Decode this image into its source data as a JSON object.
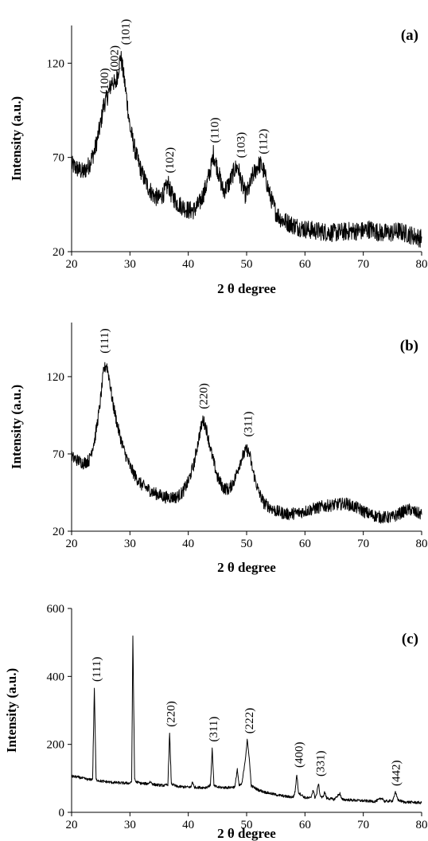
{
  "chart_data": [
    {
      "id": "a",
      "type": "line",
      "panel_label": "(a)",
      "xlabel": "2 θ degree",
      "ylabel": "Intensity (a.u.)",
      "xlim": [
        20,
        80
      ],
      "ylim": [
        20,
        140
      ],
      "xticks": [
        20,
        30,
        40,
        50,
        60,
        70,
        80
      ],
      "yticks": [
        20,
        70,
        120
      ],
      "grid": false,
      "series": [
        {
          "noise": 5,
          "points": [
            [
              20,
              66
            ],
            [
              21,
              64
            ],
            [
              22,
              62
            ],
            [
              23,
              66
            ],
            [
              24,
              74
            ],
            [
              25,
              88
            ],
            [
              25.5,
              98
            ],
            [
              26,
              101
            ],
            [
              26.5,
              106
            ],
            [
              27,
              111
            ],
            [
              27.5,
              108
            ],
            [
              28,
              116
            ],
            [
              28.4,
              124
            ],
            [
              29,
              112
            ],
            [
              29.5,
              100
            ],
            [
              30,
              86
            ],
            [
              31,
              72
            ],
            [
              32,
              62
            ],
            [
              33,
              55
            ],
            [
              34,
              50
            ],
            [
              35,
              48
            ],
            [
              36,
              52
            ],
            [
              36.6,
              56
            ],
            [
              37,
              51
            ],
            [
              38,
              46
            ],
            [
              39,
              44
            ],
            [
              40,
              42
            ],
            [
              41,
              42
            ],
            [
              42,
              46
            ],
            [
              43,
              54
            ],
            [
              44,
              66
            ],
            [
              44.3,
              72
            ],
            [
              45,
              64
            ],
            [
              46,
              52
            ],
            [
              47,
              56
            ],
            [
              48,
              64
            ],
            [
              48.5,
              65
            ],
            [
              49,
              58
            ],
            [
              49.8,
              50
            ],
            [
              50.5,
              54
            ],
            [
              51,
              60
            ],
            [
              52,
              66
            ],
            [
              52.5,
              66
            ],
            [
              53,
              62
            ],
            [
              54,
              50
            ],
            [
              55,
              41
            ],
            [
              56,
              37
            ],
            [
              58,
              34
            ],
            [
              60,
              32
            ],
            [
              62,
              31
            ],
            [
              65,
              30
            ],
            [
              68,
              31
            ],
            [
              70,
              31
            ],
            [
              71,
              32
            ],
            [
              73,
              30
            ],
            [
              75,
              30
            ],
            [
              76,
              31
            ],
            [
              78,
              29
            ],
            [
              80,
              27
            ]
          ]
        }
      ],
      "annotations": [
        {
          "text": "(100)",
          "x": 25.6,
          "y": 102
        },
        {
          "text": "(002)",
          "x": 27.3,
          "y": 114
        },
        {
          "text": "(101)",
          "x": 29.2,
          "y": 128
        },
        {
          "text": "(102)",
          "x": 36.8,
          "y": 60
        },
        {
          "text": "(110)",
          "x": 44.5,
          "y": 76
        },
        {
          "text": "(103)",
          "x": 49.0,
          "y": 68
        },
        {
          "text": "(112)",
          "x": 52.8,
          "y": 70
        }
      ]
    },
    {
      "id": "b",
      "type": "line",
      "panel_label": "(b)",
      "xlabel": "2 θ degree",
      "ylabel": "Intensity (a.u.)",
      "xlim": [
        20,
        80
      ],
      "ylim": [
        20,
        155
      ],
      "xticks": [
        20,
        30,
        40,
        50,
        60,
        70,
        80
      ],
      "yticks": [
        20,
        70,
        120
      ],
      "grid": false,
      "series": [
        {
          "noise": 4,
          "points": [
            [
              20,
              68
            ],
            [
              21,
              66
            ],
            [
              22,
              64
            ],
            [
              23,
              66
            ],
            [
              24,
              80
            ],
            [
              24.8,
              100
            ],
            [
              25.5,
              124
            ],
            [
              26,
              128
            ],
            [
              26.5,
              118
            ],
            [
              27,
              104
            ],
            [
              28,
              86
            ],
            [
              29,
              72
            ],
            [
              30,
              62
            ],
            [
              31,
              55
            ],
            [
              32,
              50
            ],
            [
              34,
              45
            ],
            [
              36,
              42
            ],
            [
              38,
              42
            ],
            [
              39,
              45
            ],
            [
              40,
              52
            ],
            [
              41,
              64
            ],
            [
              42,
              84
            ],
            [
              42.5,
              92
            ],
            [
              43,
              88
            ],
            [
              44,
              70
            ],
            [
              45,
              55
            ],
            [
              46,
              48
            ],
            [
              47,
              47
            ],
            [
              48,
              54
            ],
            [
              49,
              66
            ],
            [
              50,
              73
            ],
            [
              50.5,
              70
            ],
            [
              51,
              60
            ],
            [
              52,
              46
            ],
            [
              53,
              38
            ],
            [
              55,
              33
            ],
            [
              57,
              31
            ],
            [
              59,
              32
            ],
            [
              61,
              34
            ],
            [
              63,
              36
            ],
            [
              65,
              37
            ],
            [
              67,
              38
            ],
            [
              69,
              35
            ],
            [
              71,
              31
            ],
            [
              73,
              29
            ],
            [
              75,
              29
            ],
            [
              77,
              33
            ],
            [
              78,
              34
            ],
            [
              79,
              32
            ],
            [
              80,
              31
            ]
          ]
        }
      ],
      "annotations": [
        {
          "text": "(111)",
          "x": 25.6,
          "y": 133
        },
        {
          "text": "(220)",
          "x": 42.6,
          "y": 97
        },
        {
          "text": "(311)",
          "x": 50.2,
          "y": 79
        }
      ]
    },
    {
      "id": "c",
      "type": "line",
      "panel_label": "(c)",
      "xlabel": "2 θ degree",
      "ylabel": "Intensity (a.u.)",
      "xlim": [
        20,
        80
      ],
      "ylim": [
        0,
        600
      ],
      "xticks": [
        20,
        30,
        40,
        50,
        60,
        70,
        80
      ],
      "yticks": [
        0,
        200,
        400,
        600
      ],
      "grid": false,
      "series": [
        {
          "noise": 4,
          "points": [
            [
              20,
              106
            ],
            [
              21,
              104
            ],
            [
              22,
              100
            ],
            [
              23,
              96
            ],
            [
              23.6,
              98
            ],
            [
              23.9,
              365
            ],
            [
              24.2,
              96
            ],
            [
              25,
              92
            ],
            [
              26,
              90
            ],
            [
              27,
              88
            ],
            [
              28,
              87
            ],
            [
              29,
              86
            ],
            [
              30,
              86
            ],
            [
              30.3,
              92
            ],
            [
              30.5,
              520
            ],
            [
              30.8,
              100
            ],
            [
              31,
              90
            ],
            [
              32,
              85
            ],
            [
              33,
              84
            ],
            [
              33.5,
              90
            ],
            [
              34,
              82
            ],
            [
              35,
              80
            ],
            [
              36,
              79
            ],
            [
              36.5,
              82
            ],
            [
              36.8,
              232
            ],
            [
              37.1,
              84
            ],
            [
              38,
              76
            ],
            [
              39,
              75
            ],
            [
              40.5,
              74
            ],
            [
              40.7,
              92
            ],
            [
              41,
              74
            ],
            [
              42,
              73
            ],
            [
              43,
              73
            ],
            [
              43.8,
              80
            ],
            [
              44.1,
              188
            ],
            [
              44.4,
              78
            ],
            [
              45,
              74
            ],
            [
              46,
              73
            ],
            [
              47,
              73
            ],
            [
              48,
              75
            ],
            [
              48.4,
              128
            ],
            [
              48.7,
              78
            ],
            [
              49.2,
              84
            ],
            [
              49.8,
              160
            ],
            [
              50.1,
              212
            ],
            [
              50.4,
              170
            ],
            [
              50.8,
              78
            ],
            [
              52,
              66
            ],
            [
              53,
              60
            ],
            [
              54,
              56
            ],
            [
              55,
              52
            ],
            [
              56,
              49
            ],
            [
              57,
              46
            ],
            [
              58,
              45
            ],
            [
              58.3,
              60
            ],
            [
              58.6,
              112
            ],
            [
              58.9,
              58
            ],
            [
              60,
              43
            ],
            [
              61,
              42
            ],
            [
              61.4,
              66
            ],
            [
              61.7,
              44
            ],
            [
              62,
              52
            ],
            [
              62.3,
              86
            ],
            [
              62.6,
              50
            ],
            [
              63,
              42
            ],
            [
              63.4,
              60
            ],
            [
              63.7,
              42
            ],
            [
              65,
              38
            ],
            [
              66,
              56
            ],
            [
              66.3,
              38
            ],
            [
              68,
              36
            ],
            [
              70,
              34
            ],
            [
              72,
              32
            ],
            [
              73.3,
              42
            ],
            [
              73.6,
              32
            ],
            [
              75,
              34
            ],
            [
              75.5,
              58
            ],
            [
              76,
              36
            ],
            [
              77,
              30
            ],
            [
              78,
              30
            ],
            [
              80,
              28
            ]
          ]
        }
      ],
      "annotations": [
        {
          "text": "(111)",
          "x": 24.2,
          "y": 375
        },
        {
          "text": "(220)",
          "x": 37.0,
          "y": 242
        },
        {
          "text": "(311)",
          "x": 44.3,
          "y": 198
        },
        {
          "text": "(222)",
          "x": 50.4,
          "y": 222
        },
        {
          "text": "(400)",
          "x": 58.9,
          "y": 122
        },
        {
          "text": "(331)",
          "x": 62.6,
          "y": 96
        },
        {
          "text": "(442)",
          "x": 75.6,
          "y": 68
        }
      ]
    }
  ]
}
